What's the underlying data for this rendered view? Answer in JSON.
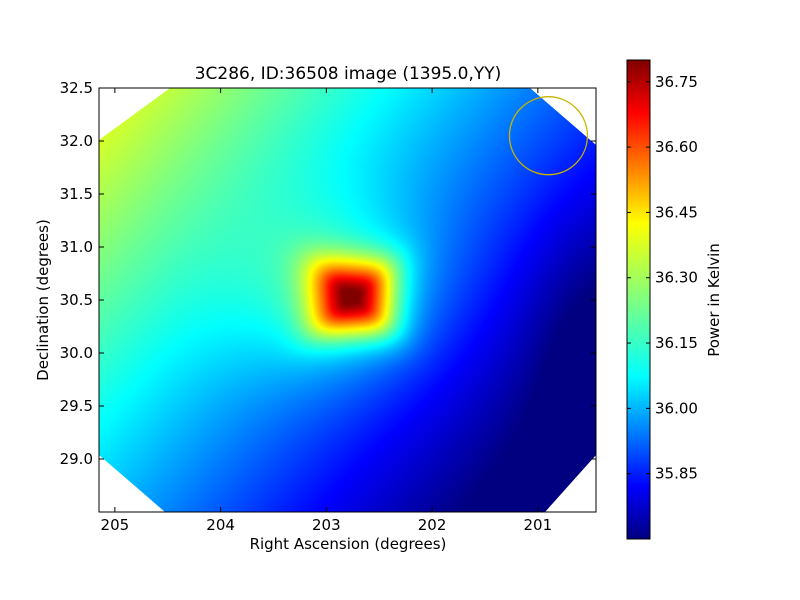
{
  "chart_data": {
    "type": "heatmap",
    "title": "3C286, ID:36508 image (1395.0,YY)",
    "xlabel": "Right Ascension (degrees)",
    "ylabel": "Declination (degrees)",
    "xlim": [
      205.15,
      200.45
    ],
    "ylim": [
      28.5,
      32.5
    ],
    "xticks": [
      205,
      204,
      203,
      202,
      201
    ],
    "xtick_labels": [
      "205",
      "204",
      "203",
      "202",
      "201"
    ],
    "yticks": [
      29.0,
      29.5,
      30.0,
      30.5,
      31.0,
      31.5,
      32.0,
      32.5
    ],
    "ytick_labels": [
      "29.0",
      "29.5",
      "30.0",
      "30.5",
      "31.0",
      "31.5",
      "32.0",
      "32.5"
    ],
    "colorbar": {
      "label": "Power in Kelvin",
      "colormap": "jet",
      "range": [
        35.7,
        36.8
      ],
      "ticks": [
        35.85,
        36.0,
        36.15,
        36.3,
        36.45,
        36.6,
        36.75
      ],
      "tick_labels": [
        "35.85",
        "36.00",
        "36.15",
        "36.30",
        "36.45",
        "36.60",
        "36.75"
      ]
    },
    "peak": {
      "ra": 202.75,
      "dec": 30.52,
      "value": 36.8
    },
    "beam_circle": {
      "ra": 200.9,
      "dec": 32.05,
      "color": "#c8b400"
    },
    "grid": false,
    "colors": {
      "cmap_low": "#00007f",
      "cmap_mid": "#7fff7f",
      "cmap_high": "#7f0000",
      "beam": "#c8b400"
    }
  }
}
